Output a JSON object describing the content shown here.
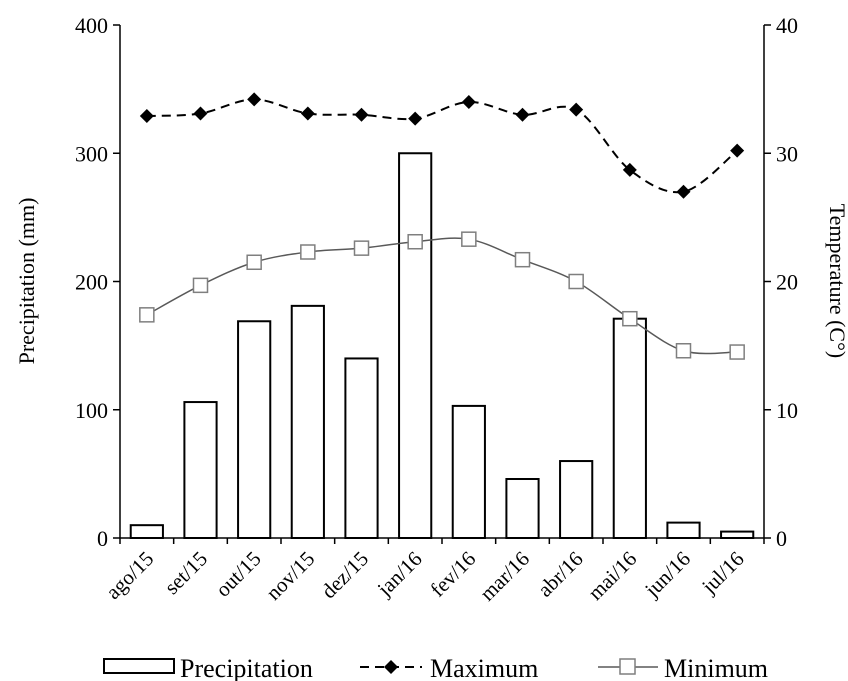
{
  "chart_data": {
    "type": "bar",
    "categories": [
      "ago/15",
      "set/15",
      "out/15",
      "nov/15",
      "dez/15",
      "jan/16",
      "fev/16",
      "mar/16",
      "abr/16",
      "mai/16",
      "jun/16",
      "jul/16"
    ],
    "series": [
      {
        "name": "Precipitation",
        "type": "bar",
        "axis": "left",
        "values": [
          10,
          106,
          169,
          181,
          140,
          300,
          103,
          46,
          60,
          171,
          12,
          5
        ]
      },
      {
        "name": "Maximum",
        "type": "line",
        "axis": "right",
        "style": "dashed",
        "marker": "filled-diamond",
        "values": [
          32.9,
          33.1,
          34.2,
          33.1,
          33.0,
          32.7,
          34.0,
          33.0,
          33.4,
          28.7,
          27.0,
          30.2
        ]
      },
      {
        "name": "Minimum",
        "type": "line",
        "axis": "right",
        "style": "solid",
        "marker": "open-square",
        "values": [
          17.4,
          19.7,
          21.5,
          22.3,
          22.6,
          23.1,
          23.3,
          21.7,
          20.0,
          17.1,
          14.6,
          14.5
        ]
      }
    ],
    "ylabel": "Precipitation (mm)",
    "y2label": "Temperature (C°)",
    "ylim": [
      0,
      400
    ],
    "y2lim": [
      0,
      40
    ],
    "yticks": [
      "0",
      "100",
      "200",
      "300",
      "400"
    ],
    "y2ticks": [
      "0",
      "10",
      "20",
      "30",
      "40"
    ],
    "grid": false,
    "legend_position": "bottom",
    "legend": {
      "precipitation_label": "Precipitation",
      "maximum_label": "Maximum",
      "minimum_label": "Minimum"
    },
    "colors": {
      "bar_fill": "#ffffff",
      "bar_stroke": "#000000",
      "maximum_line": "#000000",
      "minimum_line": "#595959",
      "minimum_marker": "#7f7f7f"
    }
  }
}
